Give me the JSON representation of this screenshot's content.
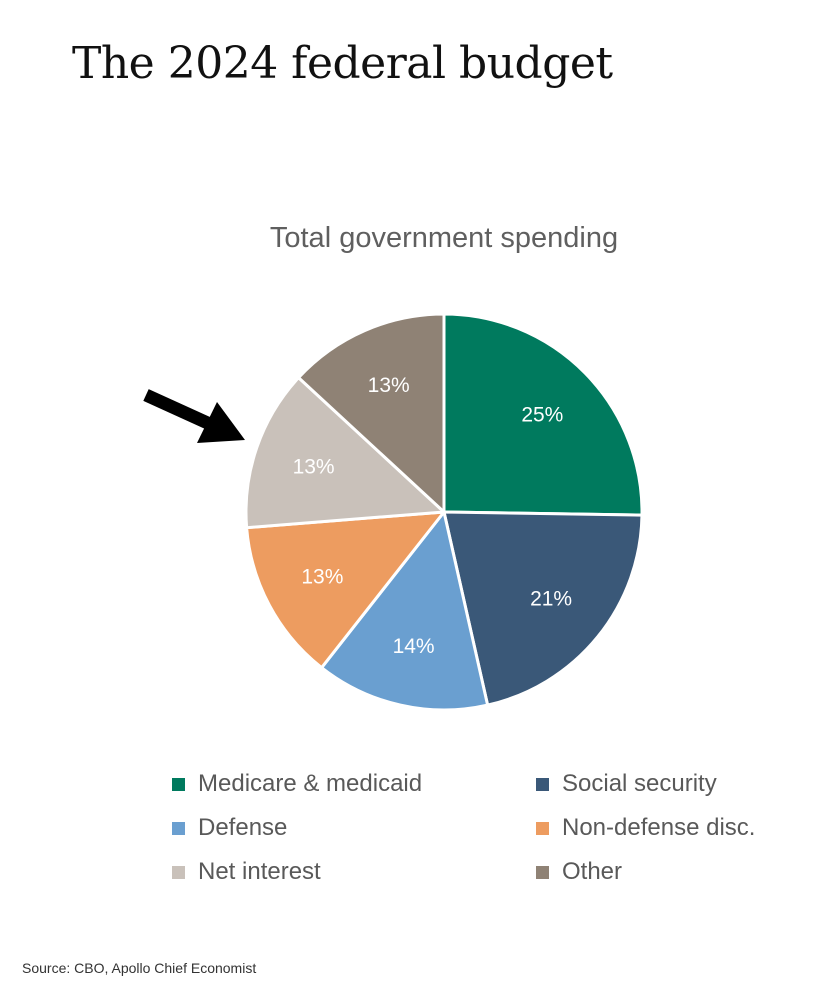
{
  "page": {
    "title": "The 2024 federal budget",
    "source": "Source: CBO, Apollo Chief Economist"
  },
  "chart_data": {
    "type": "pie",
    "title": "Total government spending",
    "categories": [
      "Medicare & medicaid",
      "Social security",
      "Defense",
      "Non-defense disc.",
      "Net interest",
      "Other"
    ],
    "values": [
      25,
      21,
      14,
      13,
      13,
      13
    ],
    "data_labels": [
      "25%",
      "21%",
      "14%",
      "13%",
      "13%",
      "13%"
    ],
    "colors": [
      "#007A5E",
      "#3A5878",
      "#6A9FD0",
      "#ED9C60",
      "#C9C1BA",
      "#8F8275"
    ],
    "label_colors": [
      "#ffffff",
      "#ffffff",
      "#ffffff",
      "#ffffff",
      "#ffffff",
      "#ffffff"
    ],
    "start_angle_deg": 0,
    "direction": "clockwise",
    "legend_position": "bottom",
    "annotation": "arrow pointing to Net interest slice"
  }
}
